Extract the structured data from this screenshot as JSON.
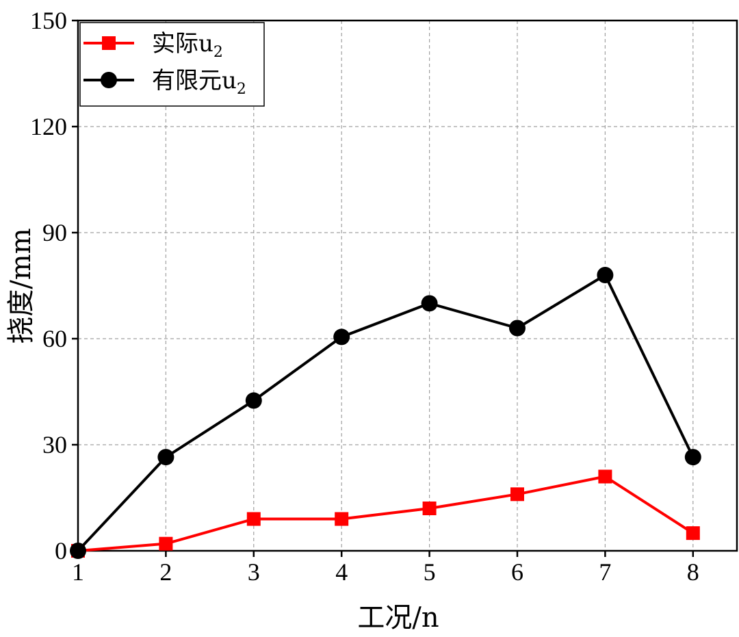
{
  "chart_data": {
    "type": "line",
    "title": "",
    "xlabel": "工况/n",
    "ylabel": "挠度/mm",
    "x": [
      1,
      2,
      3,
      4,
      5,
      6,
      7,
      8
    ],
    "xlim": [
      1,
      8.5
    ],
    "ylim": [
      0,
      150
    ],
    "xticks": [
      1,
      2,
      3,
      4,
      5,
      6,
      7,
      8
    ],
    "yticks": [
      0,
      30,
      60,
      90,
      120,
      150
    ],
    "grid": true,
    "legend_position": "top-left",
    "series": [
      {
        "name_main": "实际u",
        "name_sub": "2",
        "color": "#ff0000",
        "marker": "square",
        "values": [
          0,
          2,
          9,
          9,
          12,
          16,
          21,
          5
        ]
      },
      {
        "name_main": "有限元u",
        "name_sub": "2",
        "color": "#000000",
        "marker": "circle",
        "values": [
          0,
          26.5,
          42.5,
          60.5,
          70,
          63,
          78,
          26.5
        ]
      }
    ]
  }
}
